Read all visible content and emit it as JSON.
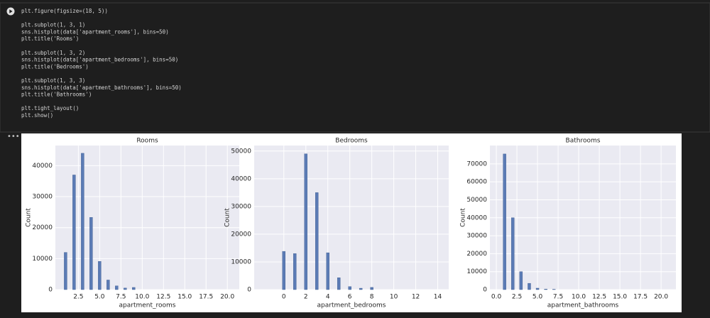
{
  "code": {
    "blocks": [
      [
        "plt.figure(figsize=(18, 5))"
      ],
      [
        "plt.subplot(1, 3, 1)",
        "sns.histplot(data['apartment_rooms'], bins=50)",
        "plt.title('Rooms')"
      ],
      [
        "plt.subplot(1, 3, 2)",
        "sns.histplot(data['apartment_bedrooms'], bins=50)",
        "plt.title('Bedrooms')"
      ],
      [
        "plt.subplot(1, 3, 3)",
        "sns.histplot(data['apartment_bathrooms'], bins=50)",
        "plt.title('Bathrooms')"
      ],
      [
        "plt.tight_layout()",
        "plt.show()"
      ]
    ]
  },
  "chart_data": [
    {
      "type": "bar",
      "title": "Rooms",
      "x_label": "apartment_rooms",
      "y_label": "Count",
      "color": "#5b7bb5",
      "grid": true,
      "x": [
        1,
        2,
        3,
        4,
        5,
        6,
        7,
        8,
        9
      ],
      "values": [
        12000,
        37000,
        44000,
        23300,
        9100,
        3100,
        1200,
        500,
        700
      ],
      "xlim": [
        -0.2,
        21.4
      ],
      "ylim": [
        0,
        46500
      ],
      "xticks": [
        2.5,
        {
          "value": 5,
          "label": "5.0"
        },
        7.5,
        {
          "value": 10,
          "label": "10.0"
        },
        12.5,
        {
          "value": 15,
          "label": "15.0"
        },
        17.5,
        {
          "value": 20,
          "label": "20.0"
        }
      ],
      "yticks": [
        0,
        10000,
        20000,
        30000,
        40000
      ]
    },
    {
      "type": "bar",
      "title": "Bedrooms",
      "x_label": "apartment_bedrooms",
      "y_label": "Count",
      "color": "#5b7bb5",
      "grid": true,
      "x": [
        0,
        1,
        2,
        3,
        4,
        5,
        6,
        7,
        8
      ],
      "values": [
        13800,
        13000,
        49000,
        35000,
        13300,
        4300,
        1100,
        500,
        800
      ],
      "xlim": [
        -2.7,
        15
      ],
      "ylim": [
        0,
        52000
      ],
      "xticks": [
        0,
        2,
        4,
        6,
        8,
        10,
        12,
        14
      ],
      "yticks": [
        0,
        10000,
        20000,
        30000,
        40000,
        50000
      ]
    },
    {
      "type": "bar",
      "title": "Bathrooms",
      "x_label": "apartment_bathrooms",
      "y_label": "Count",
      "color": "#5b7bb5",
      "grid": true,
      "x": [
        1,
        2,
        3,
        4,
        5,
        6,
        7
      ],
      "values": [
        75500,
        40000,
        10000,
        3500,
        800,
        300,
        200
      ],
      "xlim": [
        -0.78,
        21.8
      ],
      "ylim": [
        0,
        80200
      ],
      "xticks": [
        {
          "value": 0,
          "label": "0.0"
        },
        2.5,
        {
          "value": 5,
          "label": "5.0"
        },
        7.5,
        {
          "value": 10,
          "label": "10.0"
        },
        12.5,
        {
          "value": 15,
          "label": "15.0"
        },
        17.5,
        {
          "value": 20,
          "label": "20.0"
        }
      ],
      "yticks": [
        0,
        10000,
        20000,
        30000,
        40000,
        50000,
        60000,
        70000
      ]
    }
  ]
}
